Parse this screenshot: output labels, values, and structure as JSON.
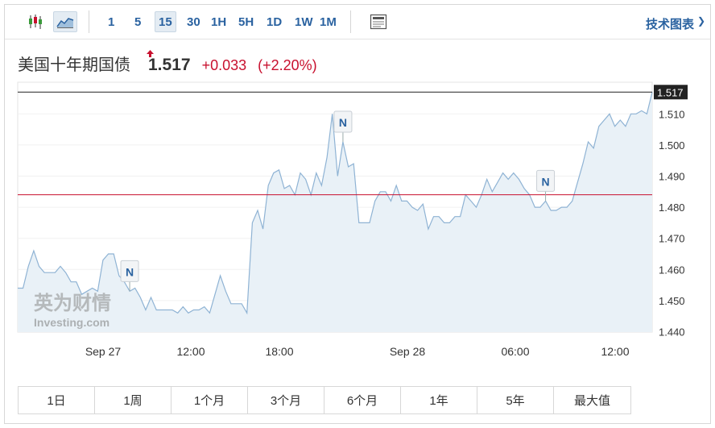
{
  "toolbar": {
    "timeframes": [
      "1",
      "5",
      "15",
      "30",
      "1H",
      "5H",
      "1D",
      "1W",
      "1M"
    ],
    "active_timeframe": "15",
    "tech_chart_label": "技术图表",
    "tech_chart_arrow": "❯"
  },
  "instrument": {
    "name": "美国十年期国债",
    "price": "1.517",
    "change": "+0.033",
    "change_pct": "(+2.20%)",
    "direction": "up"
  },
  "colors": {
    "accent": "#2a62a0",
    "negative_up": "#c8102e",
    "line": "#8fb3d4",
    "area": "#e9f1f7",
    "reference_line": "#c8102e"
  },
  "watermark": {
    "brand_cn": "英为财情",
    "brand_en": "Investing.com"
  },
  "chart_data": {
    "type": "area",
    "title": "",
    "xlabel": "",
    "ylabel": "",
    "x_tick_labels": [
      "Sep 27",
      "12:00",
      "18:00",
      "Sep 28",
      "06:00",
      "12:00"
    ],
    "y_tick_labels": [
      "1.440",
      "1.450",
      "1.460",
      "1.470",
      "1.480",
      "1.490",
      "1.500",
      "1.510"
    ],
    "ylim": [
      1.44,
      1.519
    ],
    "last_price_label": "1.517",
    "reference_level": 1.484,
    "series": [
      {
        "values": [
          1.454,
          1.454,
          1.461,
          1.466,
          1.461,
          1.459,
          1.459,
          1.459,
          1.461,
          1.459,
          1.456,
          1.456,
          1.452,
          1.453,
          1.454,
          1.453,
          1.463,
          1.465,
          1.465,
          1.458,
          1.456,
          1.453,
          1.454,
          1.451,
          1.447,
          1.451,
          1.447,
          1.447,
          1.447,
          1.447,
          1.446,
          1.448,
          1.446,
          1.447,
          1.447,
          1.448,
          1.446,
          1.452,
          1.458,
          1.453,
          1.449,
          1.449,
          1.449,
          1.446,
          1.475,
          1.479,
          1.473,
          1.487,
          1.491,
          1.492,
          1.486,
          1.487,
          1.484,
          1.491,
          1.489,
          1.484,
          1.491,
          1.487,
          1.496,
          1.51,
          1.49,
          1.501,
          1.493,
          1.494,
          1.475,
          1.475,
          1.475,
          1.482,
          1.485,
          1.485,
          1.482,
          1.487,
          1.482,
          1.482,
          1.48,
          1.479,
          1.481,
          1.473,
          1.477,
          1.477,
          1.475,
          1.475,
          1.477,
          1.477,
          1.484,
          1.482,
          1.48,
          1.484,
          1.489,
          1.485,
          1.488,
          1.491,
          1.489,
          1.491,
          1.489,
          1.486,
          1.484,
          1.48,
          1.48,
          1.482,
          1.479,
          1.479,
          1.48,
          1.48,
          1.482,
          1.488,
          1.494,
          1.501,
          1.499,
          1.506,
          1.508,
          1.51,
          1.506,
          1.508,
          1.506,
          1.51,
          1.51,
          1.511,
          1.51,
          1.517
        ]
      }
    ],
    "news_markers": [
      {
        "label": "N",
        "index": 21
      },
      {
        "label": "N",
        "index": 61
      },
      {
        "label": "N",
        "index": 99
      }
    ]
  },
  "ranges": [
    "1日",
    "1周",
    "1个月",
    "3个月",
    "6个月",
    "1年",
    "5年",
    "最大值"
  ]
}
